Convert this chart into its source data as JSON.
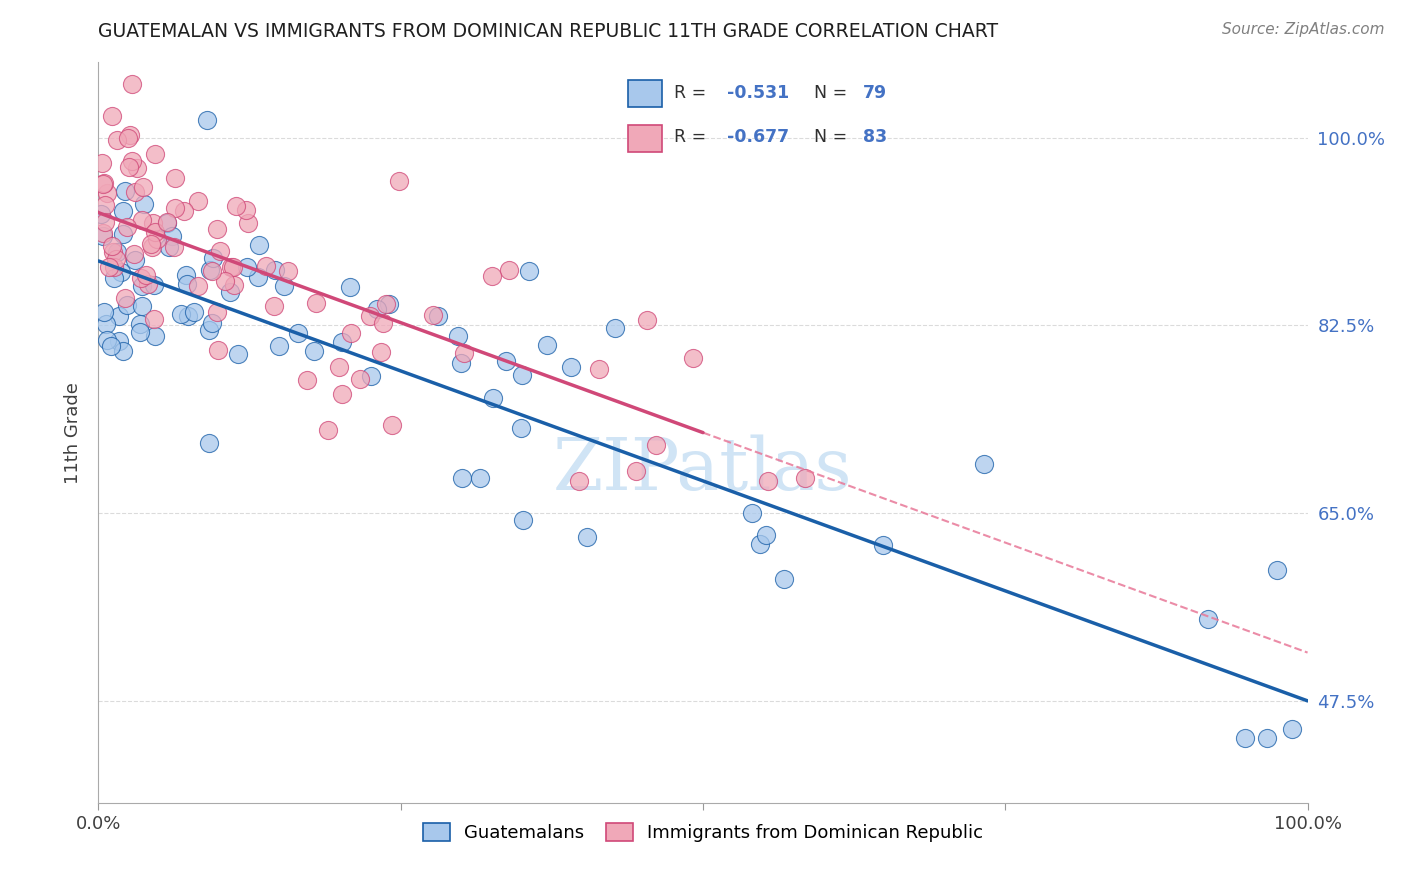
{
  "title": "GUATEMALAN VS IMMIGRANTS FROM DOMINICAN REPUBLIC 11TH GRADE CORRELATION CHART",
  "source": "Source: ZipAtlas.com",
  "ylabel": "11th Grade",
  "yticks": [
    47.5,
    65.0,
    82.5,
    100.0
  ],
  "ytick_labels": [
    "47.5%",
    "65.0%",
    "82.5%",
    "100.0%"
  ],
  "xtick_labels": [
    "0.0%",
    "100.0%"
  ],
  "xlim": [
    0.0,
    100.0
  ],
  "ylim": [
    38.0,
    107.0
  ],
  "blue_color": "#A8C8EC",
  "pink_color": "#F0A8B8",
  "blue_line_color": "#1A5FA8",
  "pink_line_color": "#D04878",
  "pink_dash_color": "#E87898",
  "title_color": "#202020",
  "source_color": "#808080",
  "axis_label_color": "#404040",
  "ytick_color": "#4472C4",
  "xtick_color": "#404040",
  "legend_r_color": "#4472C4",
  "legend_n_color": "#4472C4",
  "blue_trend_x0": 0,
  "blue_trend_y0": 88.5,
  "blue_trend_x1": 100,
  "blue_trend_y1": 47.5,
  "pink_trend_x0": 0,
  "pink_trend_y0": 93.0,
  "pink_trend_x1": 50,
  "pink_trend_y1": 72.5,
  "pink_dash_x0": 50,
  "pink_dash_y0": 72.5,
  "pink_dash_x1": 100,
  "pink_dash_y1": 52.0,
  "grid_color": "#D8D8D8",
  "watermark": "ZIPatlas",
  "watermark_color": "#D0E4F5"
}
